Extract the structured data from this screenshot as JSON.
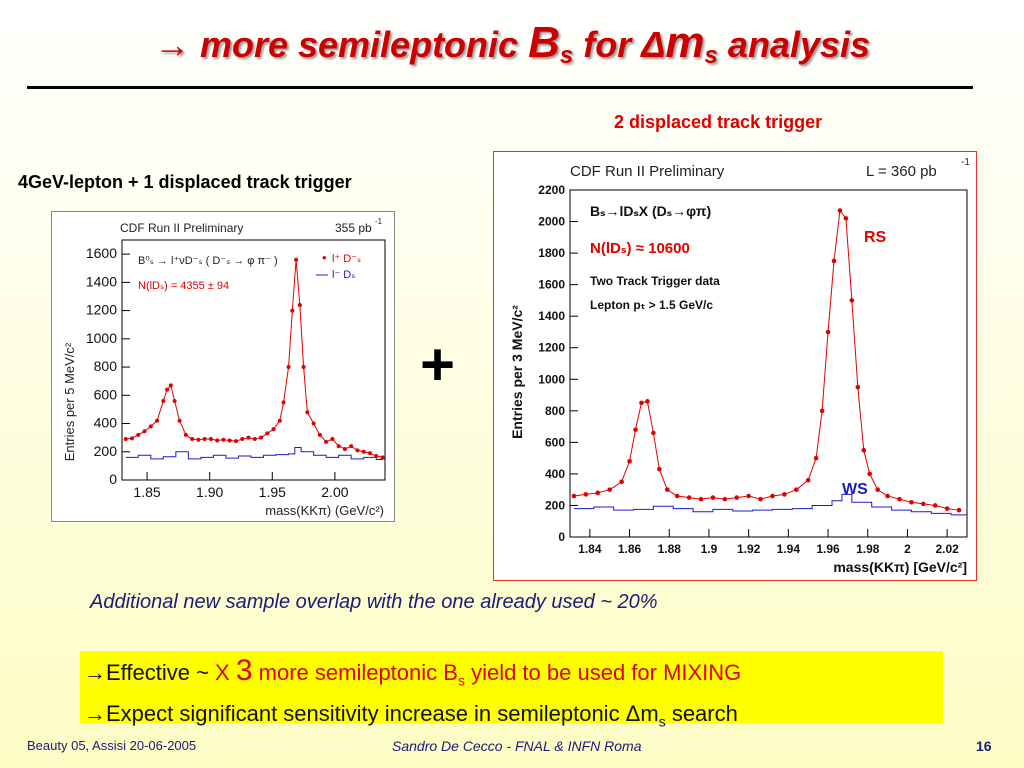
{
  "title": {
    "arrow": "→",
    "part1": "more semileptonic",
    "B": "B",
    "s1": "s",
    "for": "for",
    "delta": "Δ",
    "m": "m",
    "s2": "s",
    "part2": "analysis"
  },
  "right_trigger_label": "2 displaced track trigger",
  "left_trigger_label": "4GeV-lepton + 1 displaced track trigger",
  "plus": "+",
  "note": "Additional new sample overlap with the one already used ~ 20%",
  "bullets": {
    "arrow": "→",
    "b1_a": "Effective ~ ",
    "b1_x": "X ",
    "b1_3": "3",
    "b1_b": " more semileptonic B",
    "b1_sub": "s",
    "b1_c": " yield to be used for MIXING",
    "b2_a": "Expect significant sensitivity increase in semileptonic Δm",
    "b2_sub": "s",
    "b2_b": " search"
  },
  "footer": {
    "left": "Beauty 05, Assisi 20-06-2005",
    "center": "Sandro De Cecco - FNAL & INFN Roma",
    "page": "16"
  },
  "colors": {
    "title": "#cc0000",
    "rs": "#e00000",
    "ws": "#1a1acc",
    "highlight": "#ffff00"
  },
  "chart_data": [
    {
      "type": "scatter",
      "header_left": "CDF Run II Preliminary",
      "header_right": "355 pb",
      "header_right_sup": "-1",
      "decay_label": "B⁰ₛ → l⁺νD⁻ₛ ( D⁻ₛ → φ π⁻ )",
      "yield_label": "N(lDₛ) = 4355 ± 94",
      "legend": [
        "l⁺ D⁻ₛ",
        "l⁻ Dₛ"
      ],
      "xlabel": "mass(KKπ) (GeV/c²)",
      "ylabel": "Entries per 5 MeV/c²",
      "xlim": [
        1.83,
        2.04
      ],
      "ylim": [
        0,
        1700
      ],
      "xticks": [
        "1.85",
        "1.90",
        "1.95",
        "2.00"
      ],
      "yticks": [
        "0",
        "200",
        "400",
        "600",
        "800",
        "1000",
        "1200",
        "1400",
        "1600"
      ],
      "series": [
        {
          "color": "#e00000",
          "x": [
            1.833,
            1.838,
            1.843,
            1.848,
            1.853,
            1.858,
            1.863,
            1.866,
            1.869,
            1.872,
            1.876,
            1.881,
            1.886,
            1.891,
            1.896,
            1.901,
            1.906,
            1.911,
            1.916,
            1.921,
            1.926,
            1.931,
            1.936,
            1.941,
            1.946,
            1.951,
            1.956,
            1.959,
            1.963,
            1.966,
            1.969,
            1.972,
            1.975,
            1.978,
            1.983,
            1.988,
            1.993,
            1.998,
            2.003,
            2.008,
            2.013,
            2.018,
            2.023,
            2.028,
            2.033,
            2.038
          ],
          "y": [
            290,
            295,
            320,
            345,
            380,
            420,
            560,
            640,
            670,
            560,
            420,
            320,
            290,
            285,
            290,
            290,
            280,
            285,
            280,
            275,
            290,
            300,
            290,
            300,
            330,
            360,
            420,
            550,
            800,
            1200,
            1560,
            1240,
            800,
            480,
            400,
            320,
            270,
            290,
            240,
            220,
            240,
            210,
            200,
            190,
            170,
            160
          ]
        },
        {
          "color": "#1a1acc",
          "x": [
            1.833,
            1.843,
            1.853,
            1.863,
            1.873,
            1.883,
            1.893,
            1.903,
            1.913,
            1.923,
            1.933,
            1.943,
            1.953,
            1.963,
            1.968,
            1.973,
            1.983,
            1.993,
            2.003,
            2.013,
            2.023,
            2.033,
            2.038
          ],
          "y": [
            160,
            175,
            150,
            165,
            200,
            150,
            160,
            175,
            155,
            170,
            160,
            175,
            180,
            185,
            230,
            200,
            175,
            160,
            175,
            150,
            160,
            145,
            150
          ]
        }
      ]
    },
    {
      "type": "scatter",
      "header_left": "CDF Run II Preliminary",
      "header_right": "L = 360 pb",
      "header_right_sup": "-1",
      "decay_label": "Bₛ→lDₛX (Dₛ→φπ)",
      "yield_label": "N(lDₛ) ≈ 10600",
      "info1": "Two Track Trigger data",
      "info2": "Lepton pₜ > 1.5 GeV/c",
      "rs_label": "RS",
      "ws_label": "WS",
      "xlabel": "mass(KKπ) [GeV/c²]",
      "ylabel": "Entries per 3 MeV/c²",
      "xlim": [
        1.83,
        2.03
      ],
      "ylim": [
        0,
        2200
      ],
      "xticks": [
        "1.84",
        "1.86",
        "1.88",
        "1.9",
        "1.92",
        "1.94",
        "1.96",
        "1.98",
        "2",
        "2.02"
      ],
      "yticks": [
        "0",
        "200",
        "400",
        "600",
        "800",
        "1000",
        "1200",
        "1400",
        "1600",
        "1800",
        "2000",
        "2200"
      ],
      "series": [
        {
          "color": "#e00000",
          "x": [
            1.832,
            1.838,
            1.844,
            1.85,
            1.856,
            1.86,
            1.863,
            1.866,
            1.869,
            1.872,
            1.875,
            1.879,
            1.884,
            1.89,
            1.896,
            1.902,
            1.908,
            1.914,
            1.92,
            1.926,
            1.932,
            1.938,
            1.944,
            1.95,
            1.954,
            1.957,
            1.96,
            1.963,
            1.966,
            1.969,
            1.972,
            1.975,
            1.978,
            1.981,
            1.985,
            1.99,
            1.996,
            2.002,
            2.008,
            2.014,
            2.02,
            2.026
          ],
          "y": [
            260,
            270,
            280,
            300,
            350,
            480,
            680,
            850,
            860,
            660,
            430,
            300,
            260,
            250,
            240,
            250,
            240,
            250,
            260,
            240,
            260,
            270,
            300,
            360,
            500,
            800,
            1300,
            1750,
            2070,
            2020,
            1500,
            950,
            550,
            400,
            300,
            260,
            240,
            220,
            210,
            200,
            180,
            170
          ]
        },
        {
          "color": "#1a1acc",
          "x": [
            1.832,
            1.842,
            1.852,
            1.862,
            1.872,
            1.882,
            1.892,
            1.902,
            1.912,
            1.922,
            1.932,
            1.942,
            1.952,
            1.962,
            1.967,
            1.972,
            1.982,
            1.992,
            2.002,
            2.012,
            2.022,
            2.028
          ],
          "y": [
            180,
            190,
            170,
            175,
            195,
            180,
            160,
            175,
            165,
            170,
            175,
            180,
            200,
            230,
            270,
            220,
            190,
            170,
            160,
            150,
            140,
            140
          ]
        }
      ]
    }
  ]
}
